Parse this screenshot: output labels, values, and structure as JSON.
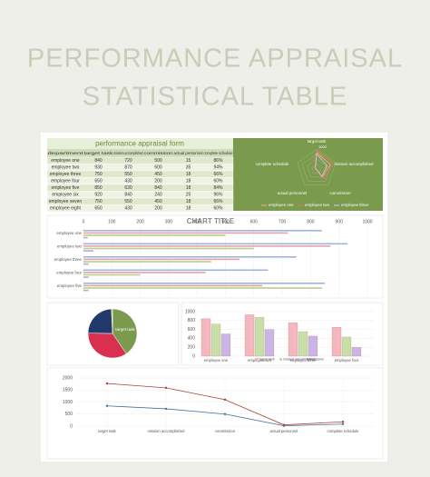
{
  "header": {
    "title_line1": "PERFORMANCE APPRAISAL",
    "title_line2": "STATISTICAL TABLE"
  },
  "table": {
    "title": "performance appraisal form",
    "columns": [
      "department",
      "target task",
      "mission accomplished",
      "commission",
      "actual personnel",
      "complete schedule"
    ],
    "rows": [
      [
        "employee one",
        "840",
        "720",
        "500",
        "15",
        "86%"
      ],
      [
        "employee two",
        "930",
        "870",
        "600",
        "35",
        "94%"
      ],
      [
        "employee three",
        "750",
        "550",
        "450",
        "18",
        "66%"
      ],
      [
        "employee four",
        "650",
        "430",
        "200",
        "18",
        "60%"
      ],
      [
        "employee five",
        "850",
        "630",
        "840",
        "18",
        "84%"
      ],
      [
        "employee six",
        "920",
        "840",
        "240",
        "25",
        "96%"
      ],
      [
        "employee seven",
        "750",
        "550",
        "450",
        "18",
        "66%"
      ],
      [
        "employee eight",
        "650",
        "430",
        "200",
        "18",
        "60%"
      ]
    ]
  },
  "radar": {
    "rmax": 1000,
    "ticks": [
      {
        "value": 1000,
        "label": "1000"
      }
    ]
  },
  "hbar": {
    "title": "CHART TITLE",
    "xlim": [
      0,
      1000
    ],
    "xticks": [
      0,
      100,
      200,
      300,
      400,
      500,
      600,
      700,
      800,
      900,
      1000
    ],
    "colors": [
      "#9db4dd",
      "#e6a0a8",
      "#b6d08a",
      "#b9a6d6"
    ]
  },
  "pie": {
    "colors": [
      "#7a9a4e",
      "#d9304f",
      "#223a6b",
      "#e7b54a"
    ]
  },
  "vbar": {
    "ylim": [
      0,
      1000
    ],
    "yticks": [
      0,
      200,
      400,
      600,
      800,
      1000
    ],
    "colors": [
      "#f4b6bf",
      "#c6e0a8",
      "#c9b6e6"
    ]
  },
  "line": {
    "ylim": [
      0,
      2000
    ],
    "yticks": [
      0,
      500,
      1000,
      1500,
      2000
    ],
    "colors": [
      "#4a6fa0",
      "#b04040"
    ]
  }
}
